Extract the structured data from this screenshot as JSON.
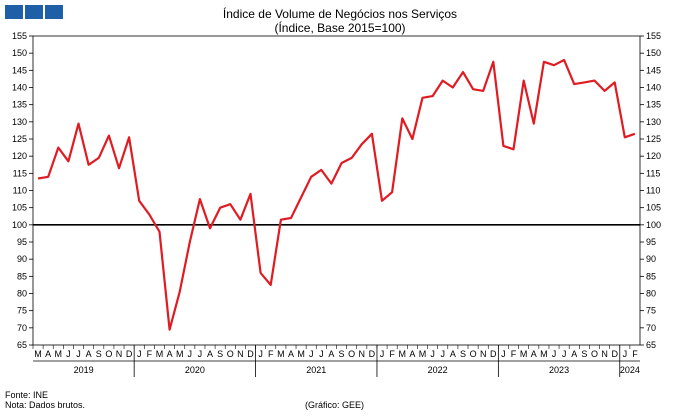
{
  "logo": {
    "color": "#1f5fa8"
  },
  "title": "Índice de Volume de Negócios nos Serviços",
  "subtitle": "(Índice, Base 2015=100)",
  "footer": {
    "source": "Fonte: INE",
    "note": "Nota: Dados brutos.",
    "credit": "(Gráfico: GEE)"
  },
  "chart_data": {
    "type": "line",
    "title": "Índice de Volume de Negócios nos Serviços",
    "subtitle": "(Índice, Base 2015=100)",
    "ylim": [
      65,
      155
    ],
    "yticks": [
      65,
      70,
      75,
      80,
      85,
      90,
      95,
      100,
      105,
      110,
      115,
      120,
      125,
      130,
      135,
      140,
      145,
      150,
      155
    ],
    "reference_line": 100,
    "grid": false,
    "y_axis_both_sides": true,
    "month_labels": [
      "M",
      "A",
      "M",
      "J",
      "J",
      "A",
      "S",
      "O",
      "N",
      "D",
      "J",
      "F",
      "M",
      "A",
      "M",
      "J",
      "J",
      "A",
      "S",
      "O",
      "N",
      "D",
      "J",
      "F",
      "M",
      "A",
      "M",
      "J",
      "J",
      "A",
      "S",
      "O",
      "N",
      "D",
      "J",
      "F",
      "M",
      "A",
      "M",
      "J",
      "J",
      "A",
      "S",
      "O",
      "N",
      "D",
      "J",
      "F",
      "M",
      "A",
      "M",
      "J",
      "J",
      "A",
      "S",
      "O",
      "N",
      "D",
      "J",
      "F"
    ],
    "year_labels": [
      {
        "label": "2019",
        "start": 0,
        "end": 9
      },
      {
        "label": "2020",
        "start": 10,
        "end": 21
      },
      {
        "label": "2021",
        "start": 22,
        "end": 33
      },
      {
        "label": "2022",
        "start": 34,
        "end": 45
      },
      {
        "label": "2023",
        "start": 46,
        "end": 57
      },
      {
        "label": "2024",
        "start": 58,
        "end": 59
      }
    ],
    "series": [
      {
        "color": "#e01b22",
        "values": [
          113.5,
          114,
          122.5,
          118.5,
          129.5,
          117.5,
          119.5,
          126,
          116.5,
          125.5,
          107,
          103,
          98,
          69.5,
          80.5,
          95,
          107.5,
          99,
          105,
          106,
          101.5,
          109,
          86,
          82.5,
          101.5,
          102,
          108,
          114,
          116,
          112,
          118,
          119.5,
          123.5,
          126.5,
          107,
          109.5,
          131,
          125,
          137,
          137.5,
          142,
          140,
          144.5,
          139.5,
          139,
          147.5,
          123,
          122,
          142,
          129.5,
          147.5,
          146.5,
          148,
          141,
          141.5,
          142,
          139,
          141.5,
          125.5,
          126.5
        ]
      }
    ]
  }
}
